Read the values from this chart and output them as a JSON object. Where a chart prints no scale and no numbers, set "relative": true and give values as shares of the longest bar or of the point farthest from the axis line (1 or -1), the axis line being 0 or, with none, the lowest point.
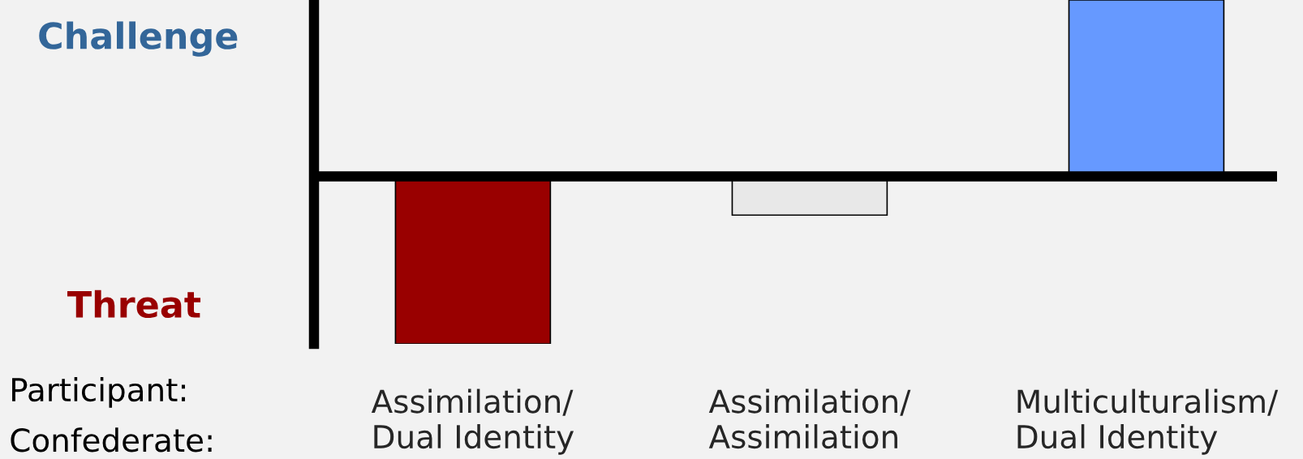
{
  "chart_data": {
    "type": "bar",
    "relative": true,
    "categories": [
      "Assimilation/\nDual Identity",
      "Assimilation/\nAssimilation",
      "Multiculturalism/\nDual Identity"
    ],
    "values": [
      -0.95,
      -0.22,
      1
    ],
    "colors": [
      "#990000",
      "#e8e8e8",
      "#6699ff"
    ],
    "annotations": [
      "Challenge",
      "Threat",
      "Participant:",
      "Confederate:"
    ],
    "grid": false,
    "legend": false
  }
}
